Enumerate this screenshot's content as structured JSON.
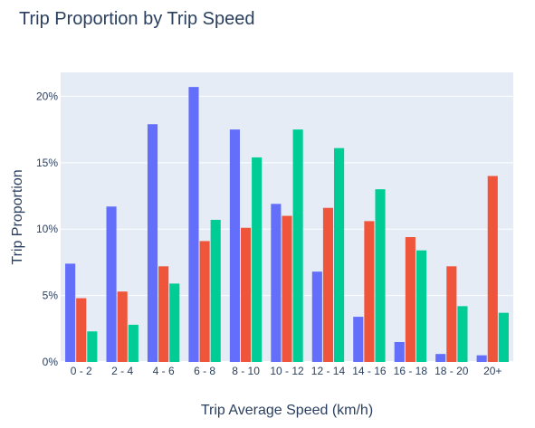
{
  "chart_data": {
    "type": "bar",
    "title": "Trip Proportion by Trip Speed",
    "xlabel": "Trip Average Speed (km/h)",
    "ylabel": "Trip Proportion",
    "categories": [
      "0 - 2",
      "2 - 4",
      "4 - 6",
      "6 - 8",
      "8 - 10",
      "10 - 12",
      "12 - 14",
      "14 - 16",
      "16 - 18",
      "18 - 20",
      "20+"
    ],
    "series": [
      {
        "color": "#636efa",
        "values": [
          7.4,
          11.7,
          17.9,
          20.7,
          17.5,
          11.9,
          6.8,
          3.4,
          1.5,
          0.6,
          0.5
        ]
      },
      {
        "color": "#ef553b",
        "values": [
          4.8,
          5.3,
          7.2,
          9.1,
          10.1,
          11.0,
          11.6,
          10.6,
          9.4,
          7.2,
          14.0
        ]
      },
      {
        "color": "#00cc96",
        "values": [
          2.3,
          2.8,
          5.9,
          10.7,
          15.4,
          17.5,
          16.1,
          13.0,
          8.4,
          4.2,
          3.7
        ]
      }
    ],
    "yticks": [
      0,
      5,
      10,
      15,
      20
    ],
    "ytick_labels": [
      "0%",
      "5%",
      "10%",
      "15%",
      "20%"
    ],
    "ylim": [
      0,
      21.8
    ],
    "grid": true,
    "plot_background": "#e5ecf6"
  }
}
